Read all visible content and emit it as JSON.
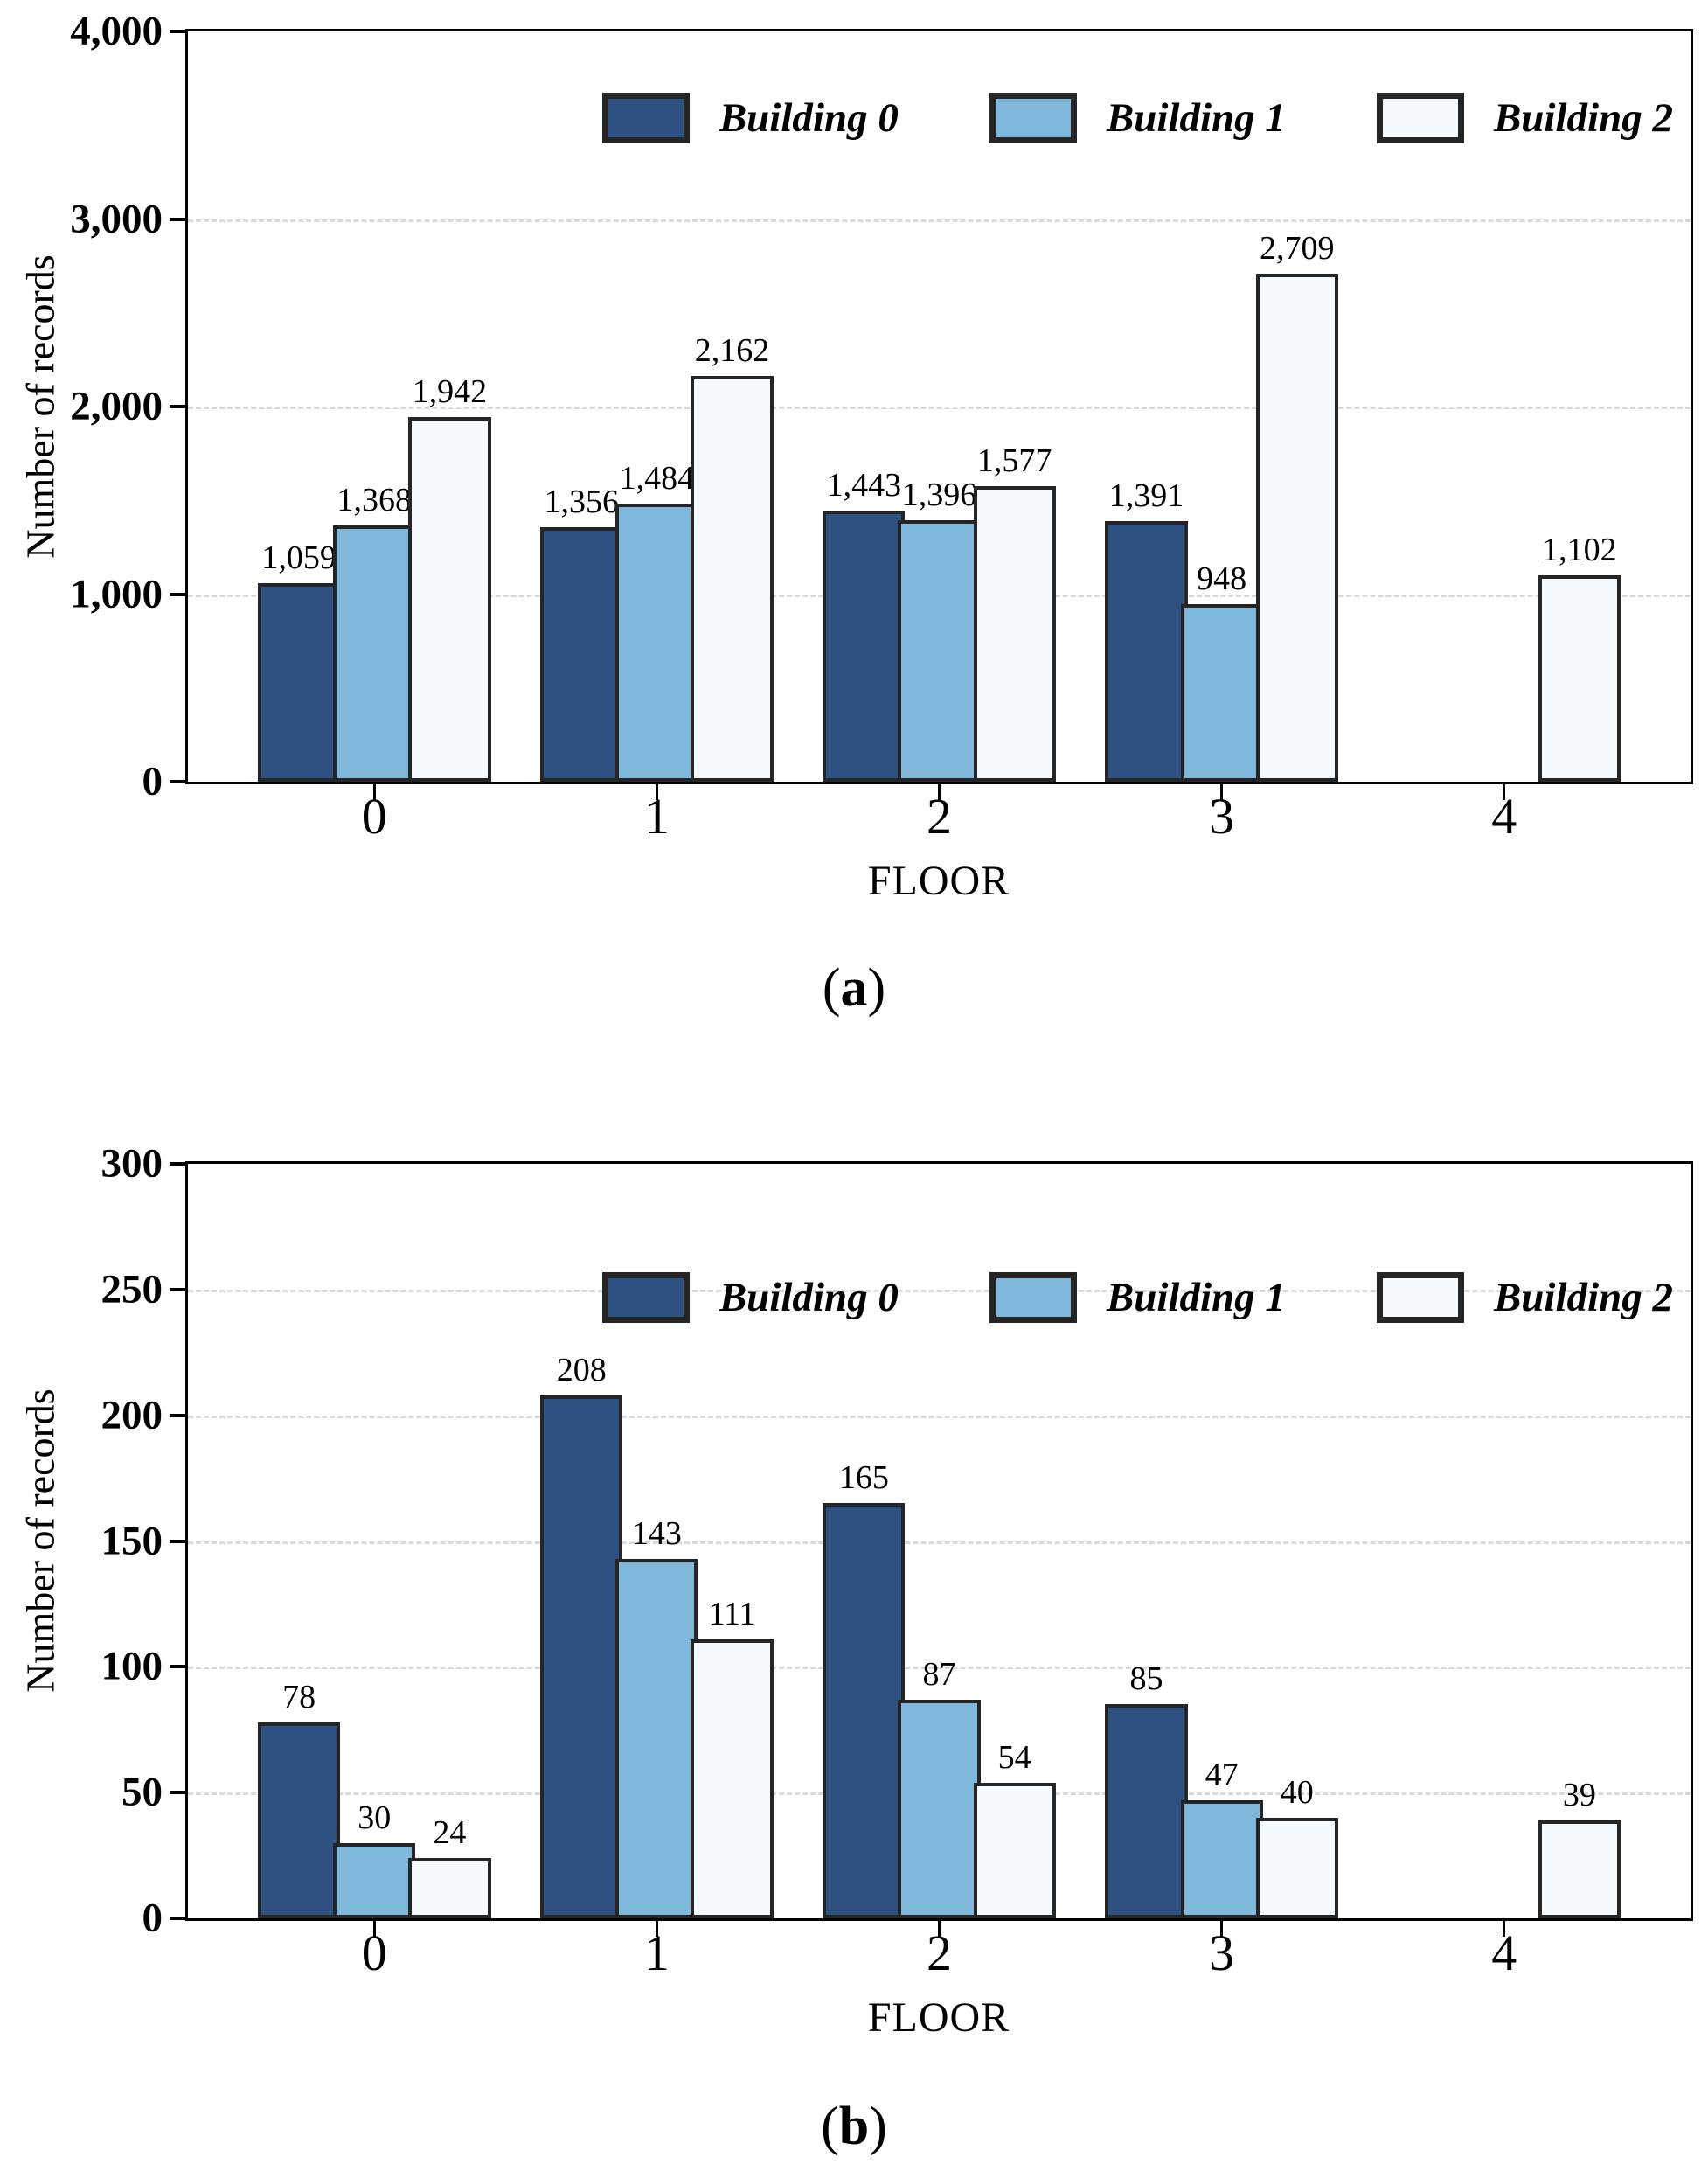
{
  "figure": {
    "y_axis_label": "Number of records",
    "x_axis_label": "FLOOR",
    "caption_open": "(",
    "caption_close": ")",
    "captions": {
      "a": "a",
      "b": "b"
    },
    "colors": {
      "building0": "#2E5181",
      "building1": "#80B8DC",
      "building2": "#F3F9FC",
      "bar_border": "#252525",
      "grid": "#d9d9d9",
      "axis": "#000000"
    }
  },
  "chart_data": [
    {
      "id": "a",
      "type": "bar",
      "title": "",
      "xlabel": "FLOOR",
      "ylabel": "Number of records",
      "categories": [
        "0",
        "1",
        "2",
        "3",
        "4"
      ],
      "series": [
        {
          "name": "Building 0",
          "color_key": "building0",
          "values": [
            1059,
            1356,
            1443,
            1391,
            null
          ],
          "labels": [
            "1,059",
            "1,356",
            "1,443",
            "1,391",
            null
          ]
        },
        {
          "name": "Building 1",
          "color_key": "building1",
          "values": [
            1368,
            1484,
            1396,
            948,
            null
          ],
          "labels": [
            "1,368",
            "1,484",
            "1,396",
            "948",
            null
          ]
        },
        {
          "name": "Building 2",
          "color_key": "building2",
          "values": [
            1942,
            2162,
            1577,
            2709,
            1102
          ],
          "labels": [
            "1,942",
            "2,162",
            "1,577",
            "2,709",
            "1,102"
          ]
        }
      ],
      "ylim": [
        0,
        4000
      ],
      "yticks": [
        0,
        1000,
        2000,
        3000,
        4000
      ],
      "ytick_labels": [
        "0",
        "1,000",
        "2,000",
        "3,000",
        "4,000"
      ],
      "grid": "horizontal-dashed",
      "legend_position": "upper-right-inside"
    },
    {
      "id": "b",
      "type": "bar",
      "title": "",
      "xlabel": "FLOOR",
      "ylabel": "Number of records",
      "categories": [
        "0",
        "1",
        "2",
        "3",
        "4"
      ],
      "series": [
        {
          "name": "Building 0",
          "color_key": "building0",
          "values": [
            78,
            208,
            165,
            85,
            null
          ],
          "labels": [
            "78",
            "208",
            "165",
            "85",
            null
          ]
        },
        {
          "name": "Building 1",
          "color_key": "building1",
          "values": [
            30,
            143,
            87,
            47,
            null
          ],
          "labels": [
            "30",
            "143",
            "87",
            "47",
            null
          ]
        },
        {
          "name": "Building 2",
          "color_key": "building2",
          "values": [
            24,
            111,
            54,
            40,
            39
          ],
          "labels": [
            "24",
            "111",
            "54",
            "40",
            "39"
          ]
        }
      ],
      "ylim": [
        0,
        300
      ],
      "yticks": [
        0,
        50,
        100,
        150,
        200,
        250,
        300
      ],
      "ytick_labels": [
        "0",
        "50",
        "100",
        "150",
        "200",
        "250",
        "300"
      ],
      "grid": "horizontal-dashed",
      "legend_position": "upper-right-inside"
    }
  ]
}
